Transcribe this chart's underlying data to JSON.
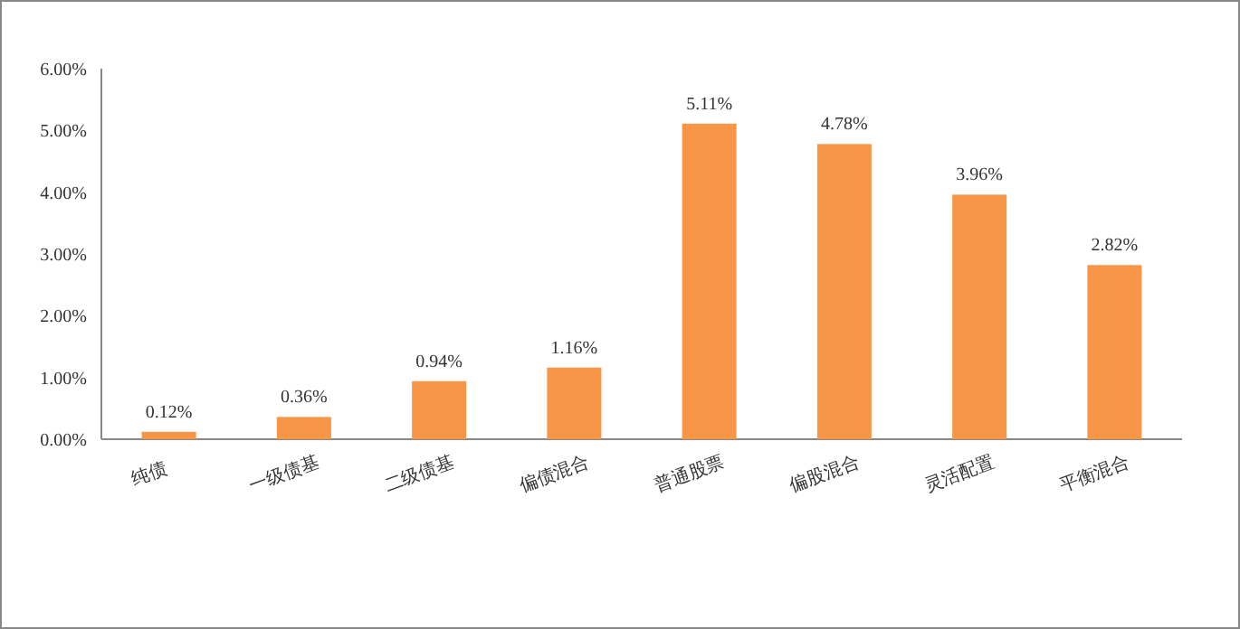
{
  "chart_data": {
    "type": "bar",
    "categories": [
      "纯债",
      "一级债基",
      "二级债基",
      "偏债混合",
      "普通股票",
      "偏股混合",
      "灵活配置",
      "平衡混合"
    ],
    "values": [
      0.12,
      0.36,
      0.94,
      1.16,
      5.11,
      4.78,
      3.96,
      2.82
    ],
    "value_labels": [
      "0.12%",
      "0.36%",
      "0.94%",
      "1.16%",
      "5.11%",
      "4.78%",
      "3.96%",
      "2.82%"
    ],
    "color": "#f79646",
    "ylim": [
      0,
      6
    ],
    "yticks": [
      {
        "value": 0,
        "label": "0.00%"
      },
      {
        "value": 1,
        "label": "1.00%"
      },
      {
        "value": 2,
        "label": "2.00%"
      },
      {
        "value": 3,
        "label": "3.00%"
      },
      {
        "value": 4,
        "label": "4.00%"
      },
      {
        "value": 5,
        "label": "5.00%"
      },
      {
        "value": 6,
        "label": "6.00%"
      }
    ],
    "grid": false
  }
}
